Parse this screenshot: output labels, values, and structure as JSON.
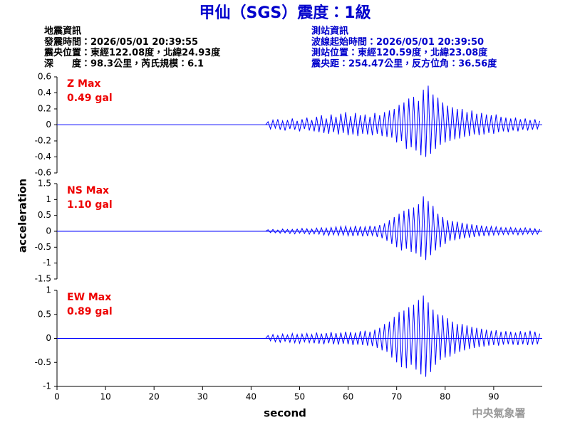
{
  "header": {
    "title": "甲仙（SGS）震度：1級",
    "event_info": [
      "地震資訊",
      "發震時間：2026/05/01 20:39:55",
      "震央位置：東經122.08度，北緯24.93度",
      "深　　度：98.3公里，芮氏規模：6.1"
    ],
    "station_info": [
      "測站資訊",
      "波線起始時間：2026/05/01 20:39:50",
      "測站位置：東經120.59度，北緯23.08度",
      "震央距：254.47公里，反方位角：36.56度"
    ]
  },
  "footer": "中央氣象署",
  "chart_data": {
    "type": "line",
    "xlabel": "second",
    "ylabel": "acceleration",
    "xlim": [
      0,
      100
    ],
    "xticks": [
      0,
      10,
      20,
      30,
      40,
      50,
      60,
      70,
      80,
      90
    ],
    "x": [
      0,
      43,
      43.5,
      44,
      44.5,
      45,
      45.5,
      46,
      46.5,
      47,
      47.5,
      48,
      48.5,
      49,
      49.5,
      50,
      50.5,
      51,
      51.5,
      52,
      52.5,
      53,
      53.5,
      54,
      54.5,
      55,
      55.5,
      56,
      56.5,
      57,
      57.5,
      58,
      58.5,
      59,
      59.5,
      60,
      60.5,
      61,
      61.5,
      62,
      62.5,
      63,
      63.5,
      64,
      64.5,
      65,
      65.5,
      66,
      66.5,
      67,
      67.5,
      68,
      68.5,
      69,
      69.5,
      70,
      70.5,
      71,
      71.5,
      72,
      72.5,
      73,
      73.5,
      74,
      74.5,
      75,
      75.5,
      76,
      76.5,
      77,
      77.5,
      78,
      78.5,
      79,
      79.5,
      80,
      80.5,
      81,
      81.5,
      82,
      82.5,
      83,
      83.5,
      84,
      84.5,
      85,
      85.5,
      86,
      86.5,
      87,
      87.5,
      88,
      88.5,
      89,
      89.5,
      90,
      90.5,
      91,
      91.5,
      92,
      92.5,
      93,
      93.5,
      94,
      94.5,
      95,
      95.5,
      96,
      96.5,
      97,
      97.5,
      98,
      98.5,
      99,
      99.5
    ],
    "series": [
      {
        "name": "Z Max",
        "max_label": "0.49 gal",
        "color": "#0000ff",
        "label_color": "#ee0000",
        "ylim": [
          -0.6,
          0.6
        ],
        "yticks": [
          0.6,
          0.4,
          0.2,
          0,
          -0.2,
          -0.4,
          -0.6
        ],
        "values": [
          0,
          0,
          0.04,
          -0.05,
          0.06,
          -0.04,
          0.07,
          -0.06,
          0.05,
          -0.07,
          0.06,
          -0.05,
          0.08,
          -0.06,
          0.05,
          -0.08,
          0.07,
          -0.05,
          0.09,
          -0.07,
          0.06,
          -0.08,
          0.1,
          -0.09,
          0.12,
          -0.1,
          0.08,
          -0.11,
          0.13,
          -0.09,
          0.1,
          -0.12,
          0.14,
          -0.1,
          0.16,
          -0.13,
          0.11,
          -0.12,
          0.15,
          -0.14,
          0.12,
          -0.11,
          0.13,
          -0.12,
          0.1,
          -0.13,
          0.15,
          -0.11,
          0.12,
          -0.14,
          0.16,
          -0.15,
          0.18,
          -0.16,
          0.2,
          -0.22,
          0.25,
          -0.2,
          0.28,
          -0.3,
          0.33,
          -0.28,
          0.35,
          -0.32,
          0.3,
          -0.38,
          0.44,
          -0.4,
          0.49,
          -0.36,
          0.38,
          -0.3,
          0.34,
          -0.25,
          0.28,
          -0.22,
          0.24,
          -0.2,
          0.22,
          -0.18,
          0.2,
          -0.17,
          0.2,
          -0.15,
          0.16,
          -0.14,
          0.18,
          -0.12,
          0.14,
          -0.13,
          0.15,
          -0.12,
          0.13,
          -0.1,
          0.12,
          -0.11,
          0.13,
          -0.09,
          0.1,
          -0.08,
          0.09,
          -0.09,
          0.08,
          -0.07,
          0.09,
          -0.08,
          0.07,
          -0.06,
          0.08,
          -0.07,
          0.06,
          -0.06,
          0.07,
          -0.05,
          0.05
        ]
      },
      {
        "name": "NS Max",
        "max_label": "1.10 gal",
        "color": "#0000ff",
        "label_color": "#ee0000",
        "ylim": [
          -1.5,
          1.5
        ],
        "yticks": [
          1.5,
          1,
          0.5,
          0,
          -0.5,
          -1,
          -1.5
        ],
        "values": [
          0,
          0,
          0.05,
          -0.04,
          0.06,
          -0.05,
          0.04,
          -0.06,
          0.07,
          -0.05,
          0.06,
          -0.07,
          0.06,
          -0.08,
          0.07,
          -0.06,
          0.09,
          -0.07,
          0.08,
          -0.09,
          0.07,
          -0.08,
          0.1,
          -0.09,
          0.11,
          -0.12,
          0.1,
          -0.13,
          0.12,
          -0.11,
          0.14,
          -0.13,
          0.15,
          -0.12,
          0.16,
          -0.14,
          0.13,
          -0.15,
          0.17,
          -0.14,
          0.15,
          -0.16,
          0.14,
          -0.15,
          0.17,
          -0.13,
          0.16,
          -0.18,
          0.2,
          -0.22,
          0.25,
          -0.3,
          0.35,
          -0.4,
          0.45,
          -0.5,
          0.55,
          -0.6,
          0.65,
          -0.55,
          0.7,
          -0.65,
          0.75,
          -0.7,
          0.85,
          -0.8,
          1.1,
          -0.9,
          0.95,
          -0.75,
          0.8,
          -0.6,
          0.55,
          -0.5,
          0.45,
          -0.4,
          0.35,
          -0.3,
          0.32,
          -0.28,
          0.3,
          -0.25,
          0.27,
          -0.22,
          0.24,
          -0.2,
          0.22,
          -0.18,
          0.2,
          -0.16,
          0.18,
          -0.15,
          0.16,
          -0.13,
          0.15,
          -0.12,
          0.14,
          -0.11,
          0.12,
          -0.1,
          0.11,
          -0.1,
          0.12,
          -0.09,
          0.1,
          -0.11,
          0.09,
          -0.1,
          0.11,
          -0.08,
          0.09,
          -0.1,
          0.08,
          -0.09,
          0.07
        ]
      },
      {
        "name": "EW Max",
        "max_label": "0.89 gal",
        "color": "#0000ff",
        "label_color": "#ee0000",
        "ylim": [
          -1,
          1
        ],
        "yticks": [
          1,
          0.5,
          0,
          -0.5,
          -1
        ],
        "values": [
          0,
          0,
          0.06,
          -0.05,
          0.08,
          -0.07,
          0.06,
          -0.08,
          0.09,
          -0.06,
          0.07,
          -0.08,
          0.1,
          -0.09,
          0.08,
          -0.1,
          0.09,
          -0.07,
          0.1,
          -0.09,
          0.08,
          -0.1,
          0.12,
          -0.11,
          0.1,
          -0.12,
          0.11,
          -0.1,
          0.13,
          -0.12,
          0.11,
          -0.13,
          0.12,
          -0.11,
          0.14,
          -0.12,
          0.13,
          -0.14,
          0.12,
          -0.13,
          0.15,
          -0.14,
          0.16,
          -0.15,
          0.14,
          -0.16,
          0.18,
          -0.2,
          0.22,
          -0.25,
          0.3,
          -0.28,
          0.35,
          -0.4,
          0.45,
          -0.5,
          0.55,
          -0.6,
          0.58,
          -0.62,
          0.65,
          -0.55,
          0.7,
          -0.65,
          0.8,
          -0.75,
          0.89,
          -0.8,
          0.75,
          -0.7,
          0.6,
          -0.55,
          0.5,
          -0.45,
          0.48,
          -0.4,
          0.42,
          -0.38,
          0.35,
          -0.32,
          0.3,
          -0.28,
          0.3,
          -0.25,
          0.27,
          -0.22,
          0.24,
          -0.2,
          0.22,
          -0.18,
          0.2,
          -0.17,
          0.18,
          -0.15,
          0.16,
          -0.14,
          0.17,
          -0.15,
          0.14,
          -0.13,
          0.15,
          -0.12,
          0.14,
          -0.13,
          0.12,
          -0.14,
          0.15,
          -0.12,
          0.13,
          -0.14,
          0.16,
          -0.13,
          0.14,
          -0.12,
          0.1
        ]
      }
    ]
  }
}
